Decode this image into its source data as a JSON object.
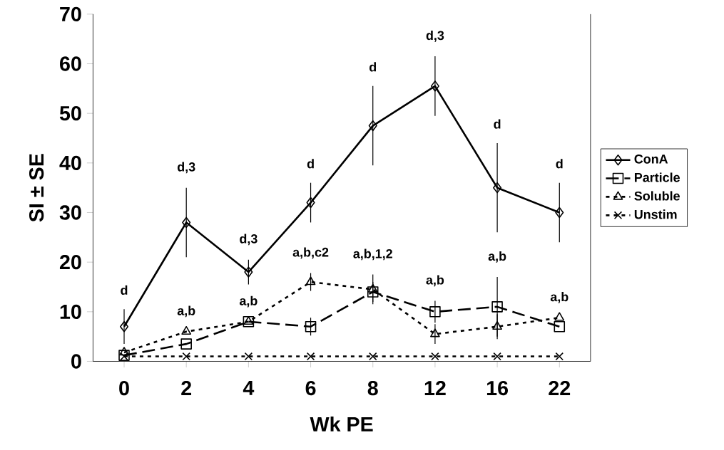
{
  "chart_data": {
    "type": "line",
    "xlabel": "Wk PE",
    "ylabel": "SI ± SE",
    "categories": [
      "0",
      "2",
      "4",
      "6",
      "8",
      "12",
      "16",
      "22"
    ],
    "series": [
      {
        "name": "ConA",
        "color": "#000000",
        "marker": "diamond",
        "line_style": "solid",
        "values": [
          7,
          28,
          18,
          32,
          47.5,
          55.5,
          35,
          30
        ],
        "errors": [
          3.5,
          7,
          2.5,
          4,
          8,
          6,
          9,
          6
        ]
      },
      {
        "name": "Particle",
        "color": "#000000",
        "marker": "square",
        "line_style": "dashed",
        "values": [
          1.2,
          3.5,
          8,
          7,
          14,
          10,
          11,
          7
        ],
        "errors": [
          null,
          null,
          null,
          1.8,
          2,
          2.2,
          6,
          null
        ]
      },
      {
        "name": "Soluble",
        "color": "#000000",
        "marker": "triangle",
        "line_style": "dotted",
        "values": [
          1.8,
          6,
          8,
          16,
          14.5,
          5.5,
          7,
          8.8
        ],
        "errors": [
          null,
          null,
          null,
          1.8,
          3,
          2,
          2.5,
          null
        ]
      },
      {
        "name": "Unstim",
        "color": "#000000",
        "marker": "cross",
        "line_style": "dotted",
        "values": [
          1,
          1,
          1,
          1,
          1,
          1,
          1,
          1
        ]
      }
    ],
    "ylim": [
      0,
      70
    ],
    "yticks": [
      0,
      10,
      20,
      30,
      40,
      50,
      60,
      70
    ],
    "grid": false,
    "legend": "right",
    "annotations": [
      "d",
      "d,3",
      "d,3",
      "d",
      "d",
      "d,3",
      "d",
      "d",
      "a,b",
      "a,b",
      "a,b,c2",
      "a,b,1,2",
      "a,b",
      "a,b",
      "a,b"
    ]
  }
}
